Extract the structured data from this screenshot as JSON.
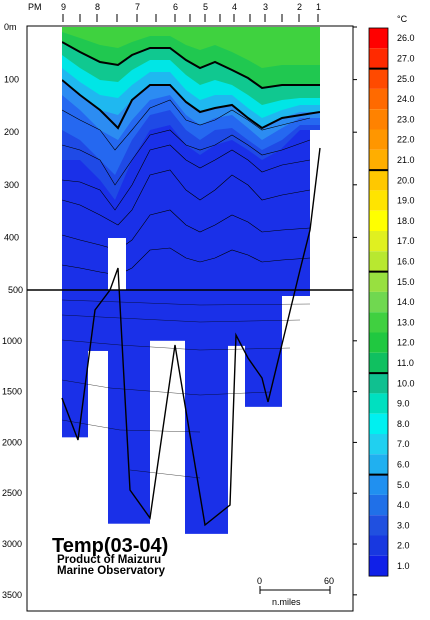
{
  "chart_data": {
    "type": "heatmap",
    "title": "Temp(03-04)",
    "subtitle_lines": [
      "Product of Maizuru",
      "Marine Observatory"
    ],
    "top_axis": {
      "prefix": "PM",
      "stations": [
        "9",
        "8",
        "7",
        "6",
        "5",
        "4",
        "3",
        "2",
        "1"
      ]
    },
    "depth_axis": {
      "upper_ticks": [
        "0m",
        "100",
        "200",
        "300",
        "400"
      ],
      "upper_range_m": [
        0,
        500
      ],
      "lower_ticks": [
        "1000",
        "1500",
        "2000",
        "2500",
        "3000",
        "3500"
      ],
      "lower_range_m": [
        500,
        3600
      ],
      "split_label": "500"
    },
    "color_scale": {
      "unit": "°C",
      "labels": [
        "26.0",
        "27.0",
        "25.0",
        "24.0",
        "23.0",
        "22.0",
        "21.0",
        "20.0",
        "19.0",
        "18.0",
        "17.0",
        "16.0",
        "15.0",
        "14.0",
        "13.0",
        "12.0",
        "11.0",
        "10.0",
        "9.0",
        "8.0",
        "7.0",
        "6.0",
        "5.0",
        "4.0",
        "3.0",
        "2.0",
        "1.0"
      ],
      "colors": [
        "#ff0000",
        "#ff2a00",
        "#ff4a00",
        "#ff6a00",
        "#ff8200",
        "#ff9600",
        "#ffae00",
        "#ffc800",
        "#ffe400",
        "#ffff00",
        "#e0f020",
        "#b8e830",
        "#98e040",
        "#70d850",
        "#40d040",
        "#20c840",
        "#10c060",
        "#10c090",
        "#00e0c0",
        "#00f0f0",
        "#20d0f0",
        "#20b0f0",
        "#2090f0",
        "#2070e8",
        "#2050e0",
        "#1838e0",
        "#1020e8"
      ]
    },
    "stations": [
      {
        "label": "9",
        "bottom_depth_m": 1950
      },
      {
        "label": "8",
        "bottom_depth_m": 1100
      },
      {
        "label": "7",
        "bottom_depth_m": 2800
      },
      {
        "label": "6",
        "bottom_depth_m": 1000
      },
      {
        "label": "5",
        "bottom_depth_m": 2900
      },
      {
        "label": "4",
        "bottom_depth_m": 1050
      },
      {
        "label": "3",
        "bottom_depth_m": 1650
      },
      {
        "label": "2",
        "bottom_depth_m": 550
      },
      {
        "label": "1",
        "bottom_depth_m": 200
      }
    ],
    "scale_bar": {
      "start": "0",
      "end": "60",
      "unit": "n.miles"
    }
  }
}
